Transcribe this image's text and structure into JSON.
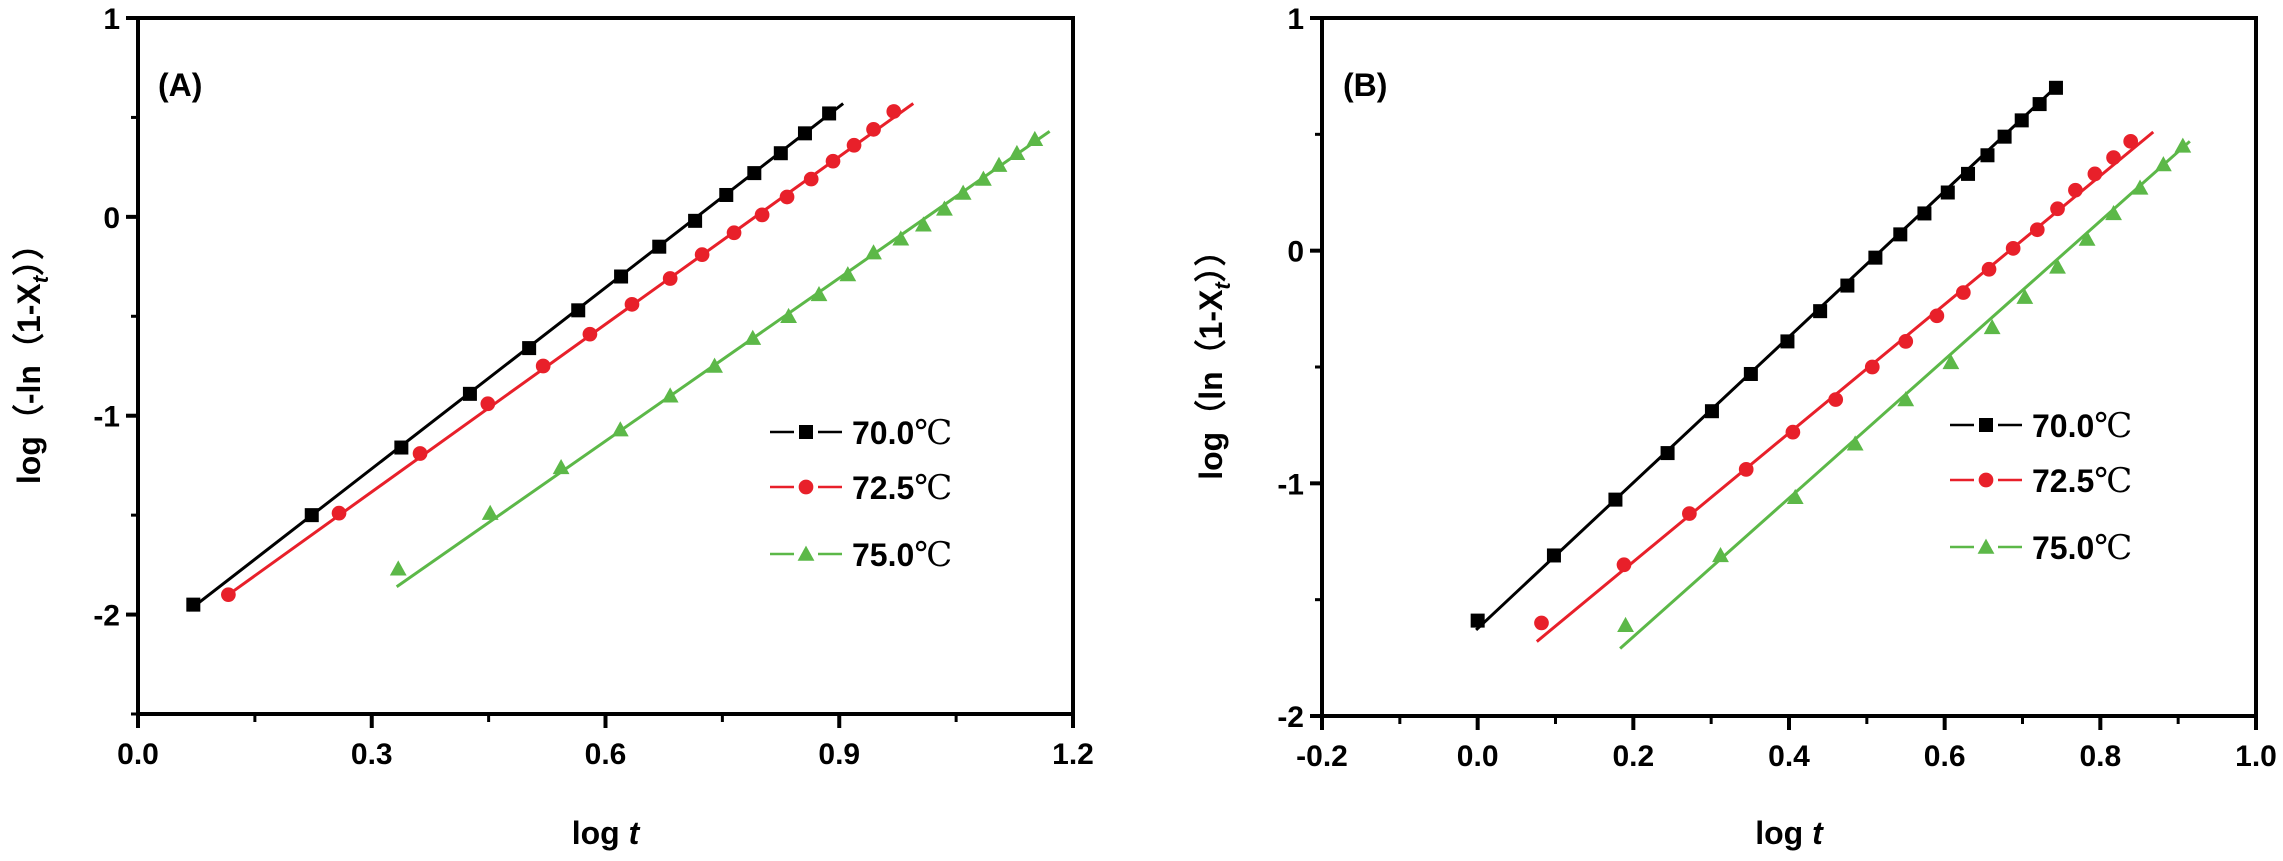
{
  "figure": {
    "panels_count": 2,
    "colors": {
      "axis": "#000000",
      "series_70": "#000000",
      "series_72_5": "#e8202a",
      "series_75": "#5cb848"
    }
  },
  "chart_data": [
    {
      "type": "scatter",
      "panel_label": "(A)",
      "title": "",
      "xlabel": "log t",
      "xlabel_parts": {
        "main": "log ",
        "italic": "t"
      },
      "ylabel": "log(-ln(1-Xt))",
      "ylabel_parts": {
        "prefix": "log（-ln（1-",
        "var": "X",
        "sub": "t",
        "suffix": "））"
      },
      "xlim": [
        0.0,
        1.2
      ],
      "ylim": [
        -2.5,
        1.0
      ],
      "xticks": [
        0.0,
        0.3,
        0.6,
        0.9,
        1.2
      ],
      "xtick_labels": [
        "0.0",
        "0.3",
        "0.6",
        "0.9",
        "1.2"
      ],
      "xminor_step": 0.15,
      "yticks": [
        1,
        0,
        -1,
        -2
      ],
      "ytick_labels": [
        "1",
        "0",
        "-1",
        "-2"
      ],
      "yminor_step": 0.5,
      "grid": false,
      "legend_position": "center-right",
      "series": [
        {
          "name": "70.0℃",
          "label_num": "70.0",
          "unit": "℃",
          "marker": "square",
          "color": "#000000",
          "fit_line": [
            [
              0.065,
              -1.98
            ],
            [
              0.905,
              0.57
            ]
          ],
          "points": [
            [
              0.071,
              -1.95
            ],
            [
              0.223,
              -1.5
            ],
            [
              0.338,
              -1.16
            ],
            [
              0.426,
              -0.89
            ],
            [
              0.502,
              -0.66
            ],
            [
              0.565,
              -0.47
            ],
            [
              0.62,
              -0.3
            ],
            [
              0.669,
              -0.15
            ],
            [
              0.715,
              -0.02
            ],
            [
              0.755,
              0.11
            ],
            [
              0.791,
              0.22
            ],
            [
              0.825,
              0.32
            ],
            [
              0.856,
              0.42
            ],
            [
              0.887,
              0.52
            ]
          ]
        },
        {
          "name": "72.5℃",
          "label_num": "72.5",
          "unit": "℃",
          "marker": "circle",
          "color": "#e8202a",
          "fit_line": [
            [
              0.116,
              -1.9
            ],
            [
              0.995,
              0.57
            ]
          ],
          "points": [
            [
              0.116,
              -1.9
            ],
            [
              0.258,
              -1.49
            ],
            [
              0.362,
              -1.19
            ],
            [
              0.449,
              -0.94
            ],
            [
              0.52,
              -0.75
            ],
            [
              0.58,
              -0.59
            ],
            [
              0.634,
              -0.44
            ],
            [
              0.683,
              -0.31
            ],
            [
              0.724,
              -0.19
            ],
            [
              0.765,
              -0.08
            ],
            [
              0.801,
              0.01
            ],
            [
              0.833,
              0.1
            ],
            [
              0.864,
              0.19
            ],
            [
              0.892,
              0.28
            ],
            [
              0.919,
              0.36
            ],
            [
              0.944,
              0.44
            ],
            [
              0.97,
              0.53
            ]
          ]
        },
        {
          "name": "75.0℃",
          "label_num": "75.0",
          "unit": "℃",
          "marker": "triangle",
          "color": "#5cb848",
          "fit_line": [
            [
              0.332,
              -1.86
            ],
            [
              1.17,
              0.43
            ]
          ],
          "points": [
            [
              0.334,
              -1.77
            ],
            [
              0.452,
              -1.49
            ],
            [
              0.543,
              -1.26
            ],
            [
              0.619,
              -1.07
            ],
            [
              0.683,
              -0.9
            ],
            [
              0.74,
              -0.75
            ],
            [
              0.789,
              -0.61
            ],
            [
              0.835,
              -0.5
            ],
            [
              0.874,
              -0.39
            ],
            [
              0.911,
              -0.29
            ],
            [
              0.944,
              -0.18
            ],
            [
              0.979,
              -0.11
            ],
            [
              1.008,
              -0.04
            ],
            [
              1.035,
              0.04
            ],
            [
              1.059,
              0.12
            ],
            [
              1.085,
              0.19
            ],
            [
              1.105,
              0.26
            ],
            [
              1.128,
              0.32
            ],
            [
              1.151,
              0.39
            ]
          ]
        }
      ]
    },
    {
      "type": "scatter",
      "panel_label": "(B)",
      "title": "",
      "xlabel": "log t",
      "xlabel_parts": {
        "main": "log ",
        "italic": "t"
      },
      "ylabel": "log(ln(1-Xt))",
      "ylabel_parts": {
        "prefix": "log（ln（1-",
        "var": "X",
        "sub": "t",
        "suffix": "））"
      },
      "xlim": [
        -0.2,
        1.0
      ],
      "ylim": [
        -2.0,
        1.0
      ],
      "xticks": [
        -0.2,
        0.0,
        0.2,
        0.4,
        0.6,
        0.8,
        1.0
      ],
      "xtick_labels": [
        "-0.2",
        "0.0",
        "0.2",
        "0.4",
        "0.6",
        "0.8",
        "1.0"
      ],
      "xminor_step": 0.1,
      "yticks": [
        1,
        0,
        -1,
        -2
      ],
      "ytick_labels": [
        "1",
        "0",
        "-1",
        "-2"
      ],
      "yminor_step": 0.5,
      "grid": false,
      "legend_position": "center-right",
      "series": [
        {
          "name": "70.0℃",
          "label_num": "70.0",
          "unit": "℃",
          "marker": "square",
          "color": "#000000",
          "fit_line": [
            [
              -0.002,
              -1.63
            ],
            [
              0.745,
              0.71
            ]
          ],
          "points": [
            [
              0.0,
              -1.59
            ],
            [
              0.098,
              -1.31
            ],
            [
              0.177,
              -1.07
            ],
            [
              0.244,
              -0.87
            ],
            [
              0.301,
              -0.69
            ],
            [
              0.351,
              -0.53
            ],
            [
              0.398,
              -0.39
            ],
            [
              0.44,
              -0.26
            ],
            [
              0.475,
              -0.15
            ],
            [
              0.511,
              -0.03
            ],
            [
              0.543,
              0.07
            ],
            [
              0.574,
              0.16
            ],
            [
              0.604,
              0.25
            ],
            [
              0.63,
              0.33
            ],
            [
              0.655,
              0.41
            ],
            [
              0.677,
              0.49
            ],
            [
              0.699,
              0.56
            ],
            [
              0.722,
              0.63
            ],
            [
              0.743,
              0.7
            ]
          ]
        },
        {
          "name": "72.5℃",
          "label_num": "72.5",
          "unit": "℃",
          "marker": "circle",
          "color": "#e8202a",
          "fit_line": [
            [
              0.076,
              -1.68
            ],
            [
              0.868,
              0.51
            ]
          ],
          "points": [
            [
              0.082,
              -1.6
            ],
            [
              0.188,
              -1.35
            ],
            [
              0.272,
              -1.13
            ],
            [
              0.345,
              -0.94
            ],
            [
              0.405,
              -0.78
            ],
            [
              0.46,
              -0.64
            ],
            [
              0.507,
              -0.5
            ],
            [
              0.55,
              -0.39
            ],
            [
              0.59,
              -0.28
            ],
            [
              0.624,
              -0.18
            ],
            [
              0.657,
              -0.08
            ],
            [
              0.688,
              0.01
            ],
            [
              0.719,
              0.09
            ],
            [
              0.745,
              0.18
            ],
            [
              0.768,
              0.26
            ],
            [
              0.793,
              0.33
            ],
            [
              0.817,
              0.4
            ],
            [
              0.839,
              0.47
            ]
          ]
        },
        {
          "name": "75.0℃",
          "label_num": "75.0",
          "unit": "℃",
          "marker": "triangle",
          "color": "#5cb848",
          "fit_line": [
            [
              0.183,
              -1.71
            ],
            [
              0.915,
              0.47
            ]
          ],
          "points": [
            [
              0.19,
              -1.61
            ],
            [
              0.312,
              -1.31
            ],
            [
              0.408,
              -1.06
            ],
            [
              0.485,
              -0.83
            ],
            [
              0.55,
              -0.64
            ],
            [
              0.608,
              -0.48
            ],
            [
              0.661,
              -0.33
            ],
            [
              0.703,
              -0.2
            ],
            [
              0.745,
              -0.07
            ],
            [
              0.783,
              0.05
            ],
            [
              0.817,
              0.16
            ],
            [
              0.851,
              0.27
            ],
            [
              0.881,
              0.37
            ],
            [
              0.906,
              0.45
            ]
          ]
        }
      ]
    }
  ]
}
